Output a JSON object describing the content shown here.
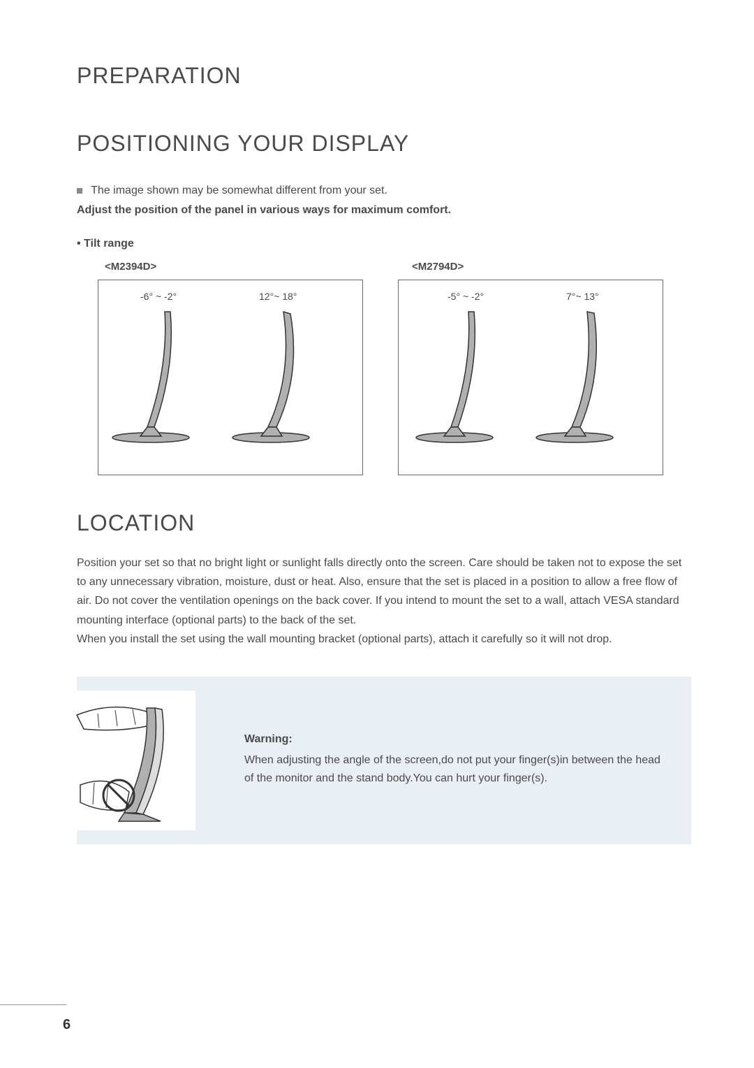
{
  "page": {
    "title": "PREPARATION",
    "section_title": "POSITIONING YOUR DISPLAY",
    "note_text": "The image shown may be somewhat different from your set.",
    "adjust_text": "Adjust the position of the panel in various ways for maximum comfort.",
    "tilt_label": "• Tilt range",
    "models": [
      {
        "name": "<M2394D>",
        "angle_back": "-6° ~ -2°",
        "angle_fwd": "12°~ 18°"
      },
      {
        "name": "<M2794D>",
        "angle_back": "-5° ~ -2°",
        "angle_fwd": "7°~ 13°"
      }
    ],
    "location_title": "LOCATION",
    "location_body": "Position your set so that no bright light or sunlight falls directly onto the screen. Care should be taken not to expose the set to any unnecessary vibration, moisture, dust or heat. Also, ensure that the set is placed in a position to allow a free flow of air. Do not cover the ventilation openings on the back cover. If you intend to mount the set to a wall, attach VESA standard mounting interface (optional parts) to the back of the set.\nWhen you install the set using the wall mounting bracket (optional parts), attach it carefully so it will not drop.",
    "warning_title": "Warning:",
    "warning_text": "When adjusting the angle of the screen,do not put your finger(s)in between the head of the monitor and the stand body.You can hurt your finger(s).",
    "page_number": "6"
  },
  "style": {
    "monitor_fill": "#b0b0b0",
    "monitor_stroke": "#333333",
    "box_border": "#666666"
  }
}
